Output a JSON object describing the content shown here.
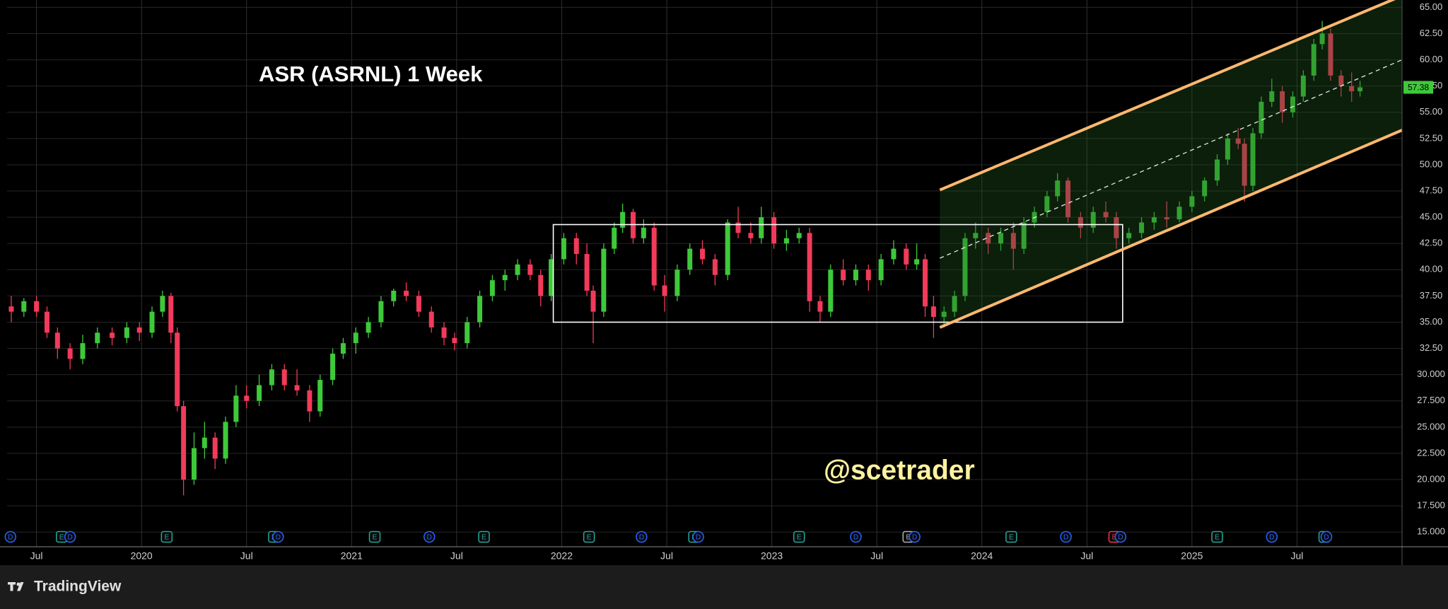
{
  "chart_data": {
    "type": "candlestick",
    "title": "ASR (ASRNL) 1 Week",
    "watermark": "@scetrader",
    "up_color": "#3ec93a",
    "down_color": "#f23a5a",
    "grid": true,
    "xlim": [
      2019.36,
      2026.0
    ],
    "xticks": [
      {
        "value": 2019.5,
        "label": "Jul"
      },
      2020,
      {
        "value": 2020.5,
        "label": "Jul"
      },
      2021,
      {
        "value": 2021.5,
        "label": "Jul"
      },
      2022,
      {
        "value": 2022.5,
        "label": "Jul"
      },
      2023,
      {
        "value": 2023.5,
        "label": "Jul"
      },
      2024,
      {
        "value": 2024.5,
        "label": "Jul"
      },
      2025,
      {
        "value": 2025.5,
        "label": "Jul"
      }
    ],
    "ylim": [
      13.6,
      65.7
    ],
    "yticks": [
      {
        "value": 15,
        "label": "15.000"
      },
      {
        "value": 17.5,
        "label": "17.500"
      },
      {
        "value": 20,
        "label": "20.000"
      },
      {
        "value": 22.5,
        "label": "22.500"
      },
      {
        "value": 25,
        "label": "25.000"
      },
      {
        "value": 27.5,
        "label": "27.500"
      },
      {
        "value": 30,
        "label": "30.000"
      },
      {
        "value": 32.5,
        "label": "32.50"
      },
      {
        "value": 35,
        "label": "35.00"
      },
      {
        "value": 37.5,
        "label": "37.50"
      },
      {
        "value": 40,
        "label": "40.00"
      },
      {
        "value": 42.5,
        "label": "42.50"
      },
      {
        "value": 45,
        "label": "45.00"
      },
      {
        "value": 47.5,
        "label": "47.50"
      },
      {
        "value": 50,
        "label": "50.00"
      },
      {
        "value": 52.5,
        "label": "52.50"
      },
      {
        "value": 55,
        "label": "55.00"
      },
      {
        "value": 57.5,
        "label": "57.50"
      },
      {
        "value": 60,
        "label": "60.00"
      },
      {
        "value": 62.5,
        "label": "62.50"
      },
      {
        "value": 65,
        "label": "65.00"
      }
    ],
    "x": [
      2019.38,
      2019.44,
      2019.5,
      2019.55,
      2019.6,
      2019.66,
      2019.72,
      2019.79,
      2019.86,
      2019.93,
      2019.99,
      2020.05,
      2020.1,
      2020.14,
      2020.17,
      2020.2,
      2020.25,
      2020.3,
      2020.35,
      2020.4,
      2020.45,
      2020.5,
      2020.56,
      2020.62,
      2020.68,
      2020.74,
      2020.8,
      2020.85,
      2020.91,
      2020.96,
      2021.02,
      2021.08,
      2021.14,
      2021.2,
      2021.26,
      2021.32,
      2021.38,
      2021.44,
      2021.49,
      2021.55,
      2021.61,
      2021.67,
      2021.73,
      2021.79,
      2021.85,
      2021.9,
      2021.95,
      2022.01,
      2022.07,
      2022.12,
      2022.15,
      2022.2,
      2022.25,
      2022.29,
      2022.34,
      2022.39,
      2022.44,
      2022.49,
      2022.55,
      2022.61,
      2022.67,
      2022.73,
      2022.79,
      2022.84,
      2022.9,
      2022.95,
      2023.01,
      2023.07,
      2023.13,
      2023.18,
      2023.23,
      2023.28,
      2023.34,
      2023.4,
      2023.46,
      2023.52,
      2023.58,
      2023.64,
      2023.69,
      2023.73,
      2023.77,
      2023.82,
      2023.87,
      2023.92,
      2023.97,
      2024.03,
      2024.09,
      2024.15,
      2024.2,
      2024.25,
      2024.31,
      2024.36,
      2024.41,
      2024.47,
      2024.53,
      2024.59,
      2024.64,
      2024.7,
      2024.76,
      2024.82,
      2024.88,
      2024.94,
      2025.0,
      2025.06,
      2025.12,
      2025.17,
      2025.22,
      2025.25,
      2025.29,
      2025.33,
      2025.38,
      2025.43,
      2025.48,
      2025.53,
      2025.58,
      2025.62,
      2025.66,
      2025.71,
      2025.76,
      2025.8
    ],
    "open": [
      36.5,
      36,
      37,
      36,
      34,
      32.5,
      31.5,
      33,
      34,
      33.5,
      34.5,
      34,
      36,
      37.5,
      34,
      27,
      20,
      23,
      24,
      22,
      25.5,
      28,
      27.5,
      29,
      30.5,
      29,
      28.5,
      26.5,
      29.5,
      32,
      33,
      34,
      35,
      37,
      38,
      37.5,
      36,
      34.5,
      33.5,
      33,
      35,
      37.5,
      39,
      39.5,
      40.5,
      39.5,
      37.5,
      41,
      43,
      41.5,
      38,
      36,
      42,
      44,
      45.5,
      43,
      44,
      38.5,
      37.5,
      40,
      42,
      41,
      39.5,
      44.5,
      43.5,
      43,
      45,
      42.5,
      43,
      43.5,
      37,
      36,
      40,
      39,
      40,
      39,
      41,
      42,
      40.5,
      41,
      36.5,
      35.5,
      36,
      37.5,
      43,
      43.5,
      42.5,
      43.5,
      42,
      44.5,
      45.5,
      47,
      48.5,
      45,
      44,
      45.5,
      45,
      43,
      43.5,
      44.5,
      45,
      44.8,
      46,
      47,
      48.5,
      50.5,
      52.5,
      52,
      48,
      53,
      56,
      57,
      55,
      56.5,
      58.5,
      61.5,
      62.5,
      58.5,
      57.5,
      57
    ],
    "high": [
      37.5,
      37.3,
      37.5,
      36.5,
      34.5,
      33,
      33.8,
      34.5,
      34.5,
      35,
      35,
      36.5,
      38,
      37.8,
      34.5,
      27.5,
      24.5,
      25.5,
      24.5,
      26,
      29,
      29,
      30,
      31,
      31,
      30.5,
      29,
      30,
      32.5,
      33.5,
      34.5,
      35.5,
      37.5,
      38.2,
      38.8,
      38,
      36.5,
      35,
      34,
      35.5,
      38,
      39.5,
      40,
      41,
      41,
      40,
      41.5,
      43.5,
      43.5,
      42.5,
      38.5,
      42.5,
      44.5,
      46.3,
      45.8,
      44.8,
      44.5,
      39.5,
      40.5,
      42.5,
      42.8,
      41.5,
      44.8,
      46,
      44.5,
      46,
      45.5,
      43.8,
      44,
      44,
      37.5,
      40.5,
      41,
      40.5,
      40.5,
      41.5,
      42.8,
      42.5,
      42.5,
      41.5,
      37.5,
      36.5,
      38,
      43.5,
      44.5,
      44,
      44,
      44.5,
      45,
      46,
      47.5,
      49.2,
      48.8,
      45.5,
      46,
      46.5,
      45.5,
      44,
      45,
      45.5,
      46.5,
      46.5,
      47.5,
      48.8,
      51,
      53,
      53.5,
      52.5,
      53.5,
      56.5,
      58.2,
      57.5,
      57,
      59,
      62,
      63.7,
      63,
      59,
      58.8,
      58
    ],
    "low": [
      35,
      35.5,
      35.5,
      33.5,
      31.5,
      30.5,
      31,
      32.5,
      32.8,
      33,
      33.2,
      33.5,
      35.5,
      33,
      26.5,
      18.5,
      19.5,
      22,
      21,
      21.5,
      25,
      26.8,
      27,
      28.5,
      28.5,
      28,
      25.5,
      26,
      29,
      31.5,
      32,
      33.5,
      34.5,
      36.5,
      37,
      35.5,
      34,
      32.8,
      32.3,
      32.5,
      34.5,
      37,
      38,
      39,
      39,
      36.5,
      37,
      40.5,
      40.5,
      37.5,
      33,
      35.5,
      41.5,
      43.5,
      42.5,
      42.5,
      38,
      36,
      37,
      39.5,
      40.5,
      38.5,
      39,
      43,
      42.5,
      42.5,
      42,
      41.8,
      42.5,
      36,
      35,
      35.5,
      38.5,
      38.5,
      38,
      38.5,
      40.5,
      40,
      40,
      35.5,
      33.5,
      34.5,
      35.5,
      37,
      42,
      41.5,
      41.8,
      40,
      41.5,
      44,
      45,
      46.5,
      44.5,
      43,
      43.5,
      44.5,
      42,
      42.5,
      43,
      43.8,
      44,
      44.5,
      45.5,
      46.5,
      48,
      50,
      51.5,
      46.5,
      47.5,
      52.5,
      55.5,
      54,
      54.5,
      56,
      58,
      61,
      58,
      56.5,
      56,
      56.5
    ],
    "close": [
      36,
      37,
      36,
      34,
      32.5,
      31.5,
      33,
      34,
      33.5,
      34.5,
      34,
      36,
      37.5,
      34,
      27,
      20,
      23,
      24,
      22,
      25.5,
      28,
      27.5,
      29,
      30.5,
      29,
      28.5,
      26.5,
      29.5,
      32,
      33,
      34,
      35,
      37,
      38,
      37.5,
      36,
      34.5,
      33.5,
      33,
      35,
      37.5,
      39,
      39.5,
      40.5,
      39.5,
      37.5,
      41,
      43,
      41.5,
      38,
      36,
      42,
      44,
      45.5,
      43,
      44,
      38.5,
      37.5,
      40,
      42,
      41,
      39.5,
      44.5,
      43.5,
      43,
      45,
      42.5,
      43,
      43.5,
      37,
      36,
      40,
      39,
      40,
      39,
      41,
      42,
      40.5,
      41,
      36.5,
      35.5,
      36,
      37.5,
      43,
      43.5,
      42.5,
      43.5,
      42,
      44.5,
      45.5,
      47,
      48.5,
      45,
      44,
      45.5,
      45,
      43,
      43.5,
      44.5,
      45,
      44.8,
      46,
      47,
      48.5,
      50.5,
      52.5,
      52,
      48,
      53,
      56,
      57,
      55,
      56.5,
      58.5,
      61.5,
      62.5,
      58.5,
      57.5,
      57,
      57.38
    ],
    "last_price": 57.38,
    "box": {
      "color": "#ffffff",
      "x": [
        2021.96,
        2024.67
      ],
      "y": [
        35,
        44.3
      ]
    },
    "channel": {
      "color": "#ffb870",
      "fill": "#1f5a1f",
      "x": [
        2023.8,
        2026.0
      ],
      "upper": [
        47.6,
        66.1
      ],
      "lower": [
        34.5,
        53.3
      ],
      "mid": [
        41.1,
        60.0
      ]
    },
    "events": [
      {
        "x": 2019.376,
        "label": "D",
        "color": "#2962ff"
      },
      {
        "x": 2019.62,
        "label": "E",
        "color": "#26a69a"
      },
      {
        "x": 2019.66,
        "label": "D",
        "color": "#2962ff"
      },
      {
        "x": 2020.12,
        "label": "E",
        "color": "#26a69a"
      },
      {
        "x": 2020.63,
        "label": "E",
        "color": "#26a69a"
      },
      {
        "x": 2020.65,
        "label": "D",
        "color": "#2962ff"
      },
      {
        "x": 2021.11,
        "label": "E",
        "color": "#26a69a"
      },
      {
        "x": 2021.37,
        "label": "D",
        "color": "#2962ff"
      },
      {
        "x": 2021.63,
        "label": "E",
        "color": "#26a69a"
      },
      {
        "x": 2022.13,
        "label": "E",
        "color": "#26a69a"
      },
      {
        "x": 2022.38,
        "label": "D",
        "color": "#2962ff"
      },
      {
        "x": 2022.63,
        "label": "E",
        "color": "#26a69a"
      },
      {
        "x": 2022.65,
        "label": "D",
        "color": "#2962ff"
      },
      {
        "x": 2023.13,
        "label": "E",
        "color": "#26a69a"
      },
      {
        "x": 2023.4,
        "label": "D",
        "color": "#2962ff"
      },
      {
        "x": 2023.65,
        "label": "E",
        "color": "#b0b0b0"
      },
      {
        "x": 2023.68,
        "label": "D",
        "color": "#2962ff"
      },
      {
        "x": 2024.14,
        "label": "E",
        "color": "#26a69a"
      },
      {
        "x": 2024.4,
        "label": "D",
        "color": "#2962ff"
      },
      {
        "x": 2024.63,
        "label": "E",
        "color": "#f23645"
      },
      {
        "x": 2024.66,
        "label": "D",
        "color": "#2962ff"
      },
      {
        "x": 2025.12,
        "label": "E",
        "color": "#26a69a"
      },
      {
        "x": 2025.38,
        "label": "D",
        "color": "#2962ff"
      },
      {
        "x": 2025.63,
        "label": "E",
        "color": "#26a69a"
      },
      {
        "x": 2025.64,
        "label": "D",
        "color": "#2962ff"
      }
    ]
  },
  "footer": {
    "brand": "TradingView"
  }
}
